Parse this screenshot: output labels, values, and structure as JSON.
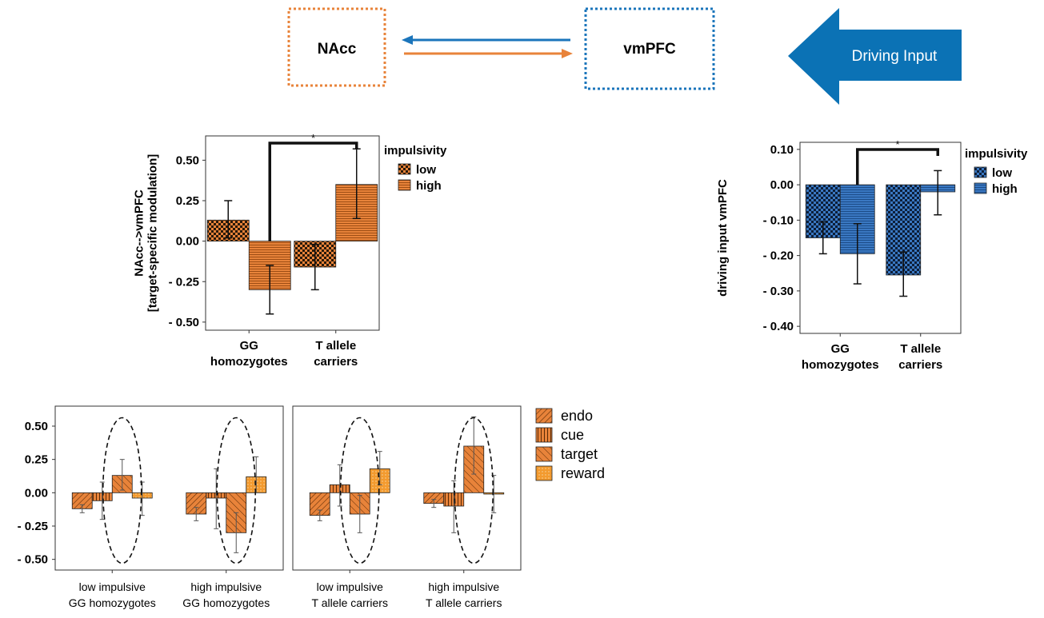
{
  "diagram": {
    "node_left": "NAcc",
    "node_right": "vmPFC",
    "driving_label": "Driving Input",
    "colors": {
      "nacc": "#E8833A",
      "vmpfc": "#1B75BB",
      "input_arrow": "#0B72B5"
    }
  },
  "chart_data": [
    {
      "type": "bar",
      "categories": [
        "GG homozygotes",
        "T allele carriers"
      ],
      "category_lines": [
        [
          "GG",
          "homozygotes"
        ],
        [
          "T allele",
          "carriers"
        ]
      ],
      "ylabel_lines": [
        "NAcc-->vmPFC",
        "[target-specific modulation]"
      ],
      "ylim": [
        -0.55,
        0.65
      ],
      "yticks": [
        0.5,
        0.25,
        0.0,
        -0.25,
        -0.5
      ],
      "ytick_labels": [
        "0.50",
        "0.25",
        "0.00",
        "- 0.25",
        "- 0.50"
      ],
      "legend_title": "impulsivity",
      "series": [
        {
          "name": "low",
          "values": [
            0.13,
            -0.16
          ],
          "err_low": [
            0.02,
            -0.3
          ],
          "err_high": [
            0.25,
            -0.02
          ]
        },
        {
          "name": "high",
          "values": [
            -0.3,
            0.35
          ],
          "err_low": [
            -0.45,
            0.14
          ],
          "err_high": [
            -0.15,
            0.57
          ]
        }
      ],
      "significance": "*",
      "color": "#E8833A"
    },
    {
      "type": "bar",
      "categories": [
        "GG homozygotes",
        "T allele carriers"
      ],
      "category_lines": [
        [
          "GG",
          "homozygotes"
        ],
        [
          "T allele",
          "carriers"
        ]
      ],
      "ylabel_lines": [
        "driving input vmPFC"
      ],
      "ylim": [
        -0.42,
        0.12
      ],
      "yticks": [
        0.1,
        0.0,
        -0.1,
        -0.2,
        -0.3,
        -0.4
      ],
      "ytick_labels": [
        "0.10",
        "0.00",
        "- 0.10",
        "- 0.20",
        "- 0.30",
        "- 0.40"
      ],
      "legend_title": "impulsivity",
      "series": [
        {
          "name": "low",
          "values": [
            -0.15,
            -0.255
          ],
          "err_low": [
            -0.195,
            -0.315
          ],
          "err_high": [
            -0.105,
            -0.19
          ]
        },
        {
          "name": "high",
          "values": [
            -0.195,
            -0.02
          ],
          "err_low": [
            -0.28,
            -0.085
          ],
          "err_high": [
            -0.11,
            0.04
          ]
        }
      ],
      "significance": "*",
      "color": "#3A78C2"
    },
    {
      "type": "bar",
      "ylim": [
        -0.58,
        0.65
      ],
      "yticks": [
        0.5,
        0.25,
        0.0,
        -0.25,
        -0.5
      ],
      "ytick_labels": [
        "0.50",
        "0.25",
        "0.00",
        "- 0.25",
        "- 0.50"
      ],
      "series_names": [
        "endo",
        "cue",
        "target",
        "reward"
      ],
      "color": "#E8833A",
      "panels": [
        {
          "groups": [
            {
              "label_lines": [
                "low impulsive",
                "GG homozygotes"
              ],
              "values": [
                -0.12,
                -0.06,
                0.13,
                -0.04
              ],
              "err_low": [
                -0.15,
                -0.2,
                0.02,
                -0.17
              ],
              "err_high": [
                -0.09,
                0.08,
                0.25,
                0.08
              ]
            },
            {
              "label_lines": [
                "high impulsive",
                "GG homozygotes"
              ],
              "values": [
                -0.16,
                -0.04,
                -0.3,
                0.12
              ],
              "err_low": [
                -0.21,
                -0.27,
                -0.45,
                0.0
              ],
              "err_high": [
                -0.11,
                0.18,
                -0.15,
                0.27
              ]
            }
          ]
        },
        {
          "groups": [
            {
              "label_lines": [
                "low impulsive",
                "T allele carriers"
              ],
              "values": [
                -0.17,
                0.06,
                -0.16,
                0.18
              ],
              "err_low": [
                -0.21,
                -0.1,
                -0.3,
                0.06
              ],
              "err_high": [
                -0.13,
                0.21,
                -0.02,
                0.31
              ]
            },
            {
              "label_lines": [
                "high impulsive",
                "T allele carriers"
              ],
              "values": [
                -0.08,
                -0.1,
                0.35,
                -0.01
              ],
              "err_low": [
                -0.11,
                -0.3,
                0.14,
                -0.15
              ],
              "err_high": [
                -0.05,
                0.09,
                0.57,
                0.13
              ]
            }
          ]
        }
      ]
    }
  ]
}
